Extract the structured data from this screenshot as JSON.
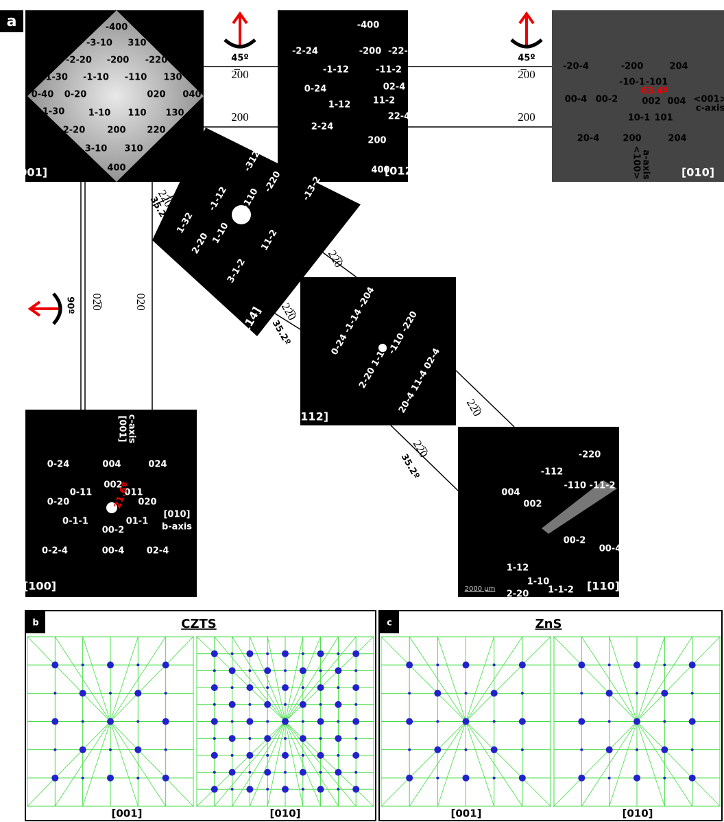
{
  "panel_a": {
    "label": "a",
    "patterns": [
      {
        "zone": "[001]",
        "labels": [
          "-400",
          "-3-10",
          "310",
          "-2-20",
          "-200",
          "-220",
          "-1-30",
          "-1-10",
          "-110",
          "130",
          "0-40",
          "0-20",
          "020",
          "040",
          "1-30",
          "1-10",
          "110",
          "130",
          "2-20",
          "200",
          "220",
          "3-10",
          "310",
          "400"
        ]
      },
      {
        "zone": "[012]",
        "labels": [
          "-400",
          "-2-24",
          "-200",
          "-22-4",
          "-1-12",
          "-11-2",
          "0-24",
          "02-4",
          "1-12",
          "11-2",
          "22-4",
          "2-24",
          "200",
          "400"
        ]
      },
      {
        "zone": "[010]",
        "labels": [
          "-20-4",
          "-200",
          "204",
          "-10-1",
          "-101",
          "63.4º",
          "00-4",
          "00-2",
          "002",
          "004",
          "<001>",
          "c-axis",
          "10-1",
          "101",
          "20-4",
          "200",
          "204",
          "<100>",
          "a-axis"
        ]
      },
      {
        "zone": "[114]",
        "labels": [
          "1-32",
          "-1-12",
          "-312",
          "-110",
          "-220",
          "-13-2",
          "1-10",
          "2-20",
          "11-2",
          "3-1-2"
        ]
      },
      {
        "zone": "[112]",
        "labels": [
          "0-24 -1-14 -204",
          "-110 -220",
          "2-20 1-10",
          "20-4 11-4 02-4"
        ]
      },
      {
        "zone": "[110]",
        "labels": [
          "-220",
          "-112",
          "-110 -11-2",
          "004",
          "002",
          "00-2",
          "00-4",
          "1-12",
          "1-10",
          "2-20",
          "1-1-2",
          "2000 µm"
        ]
      },
      {
        "zone": "[100]",
        "labels": [
          "[001]",
          "c-axis",
          "0-24",
          "004",
          "024",
          "002",
          "0-11",
          "0-20",
          "011",
          "020",
          "21.6º",
          "[010]",
          "b-axis",
          "0-1-1",
          "01-1",
          "00-2",
          "0-2-4",
          "00-4",
          "02-4"
        ]
      }
    ],
    "annotations": [
      "45º",
      "2̅00",
      "200",
      "45º",
      "2̅00",
      "200",
      "22̅0",
      "22̅0",
      "35.2º",
      "02̅0",
      "90º",
      "020",
      "22̅0",
      "22̅0",
      "35.2º",
      "22̅0",
      "22̅0",
      "35.2º"
    ]
  },
  "panel_b": {
    "label": "b",
    "title": "CZTS",
    "zones": [
      "[001]",
      "[010]"
    ]
  },
  "panel_c": {
    "label": "c",
    "title": "ZnS",
    "zones": [
      "[001]",
      "[010]"
    ]
  }
}
